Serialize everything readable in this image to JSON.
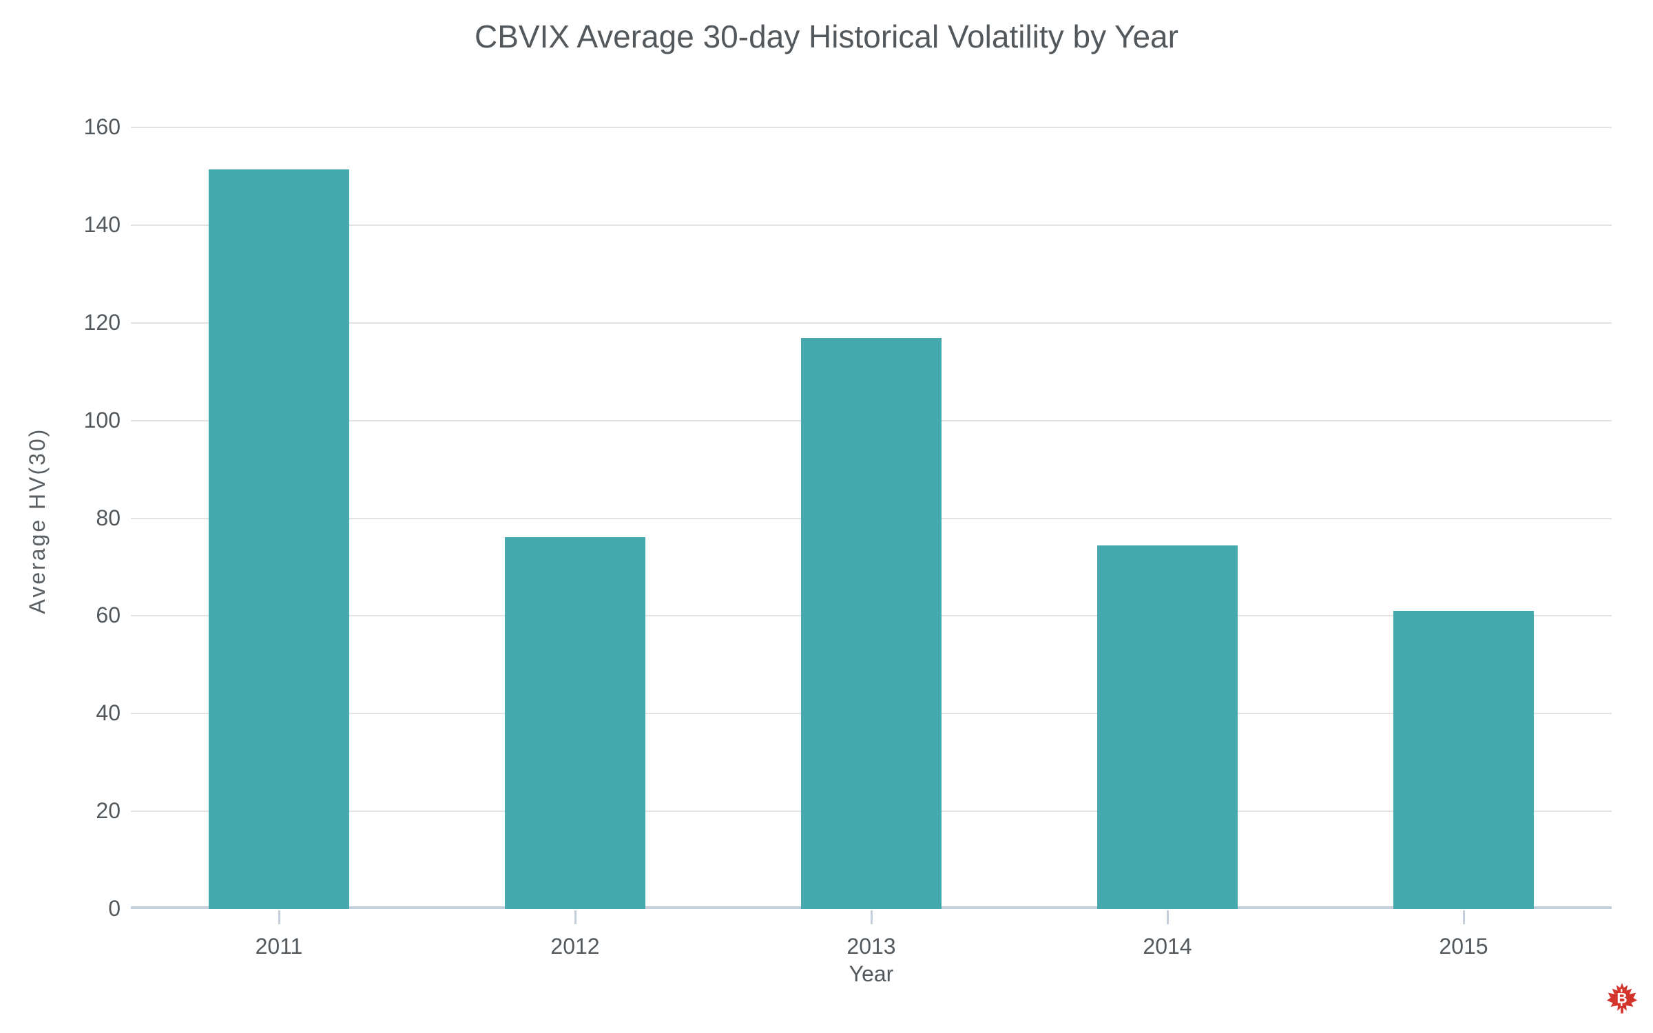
{
  "page": {
    "background": "#ffffff"
  },
  "chart_data": {
    "type": "bar",
    "title": "CBVIX Average 30-day Historical Volatility by Year",
    "xlabel": "Year",
    "ylabel": "Average HV(30)",
    "categories": [
      "2011",
      "2012",
      "2013",
      "2014",
      "2015"
    ],
    "values": [
      151.4,
      76.1,
      116.9,
      74.4,
      61.0
    ],
    "ylim": [
      0,
      160
    ],
    "yticks": [
      0,
      20,
      40,
      60,
      80,
      100,
      120,
      140,
      160
    ],
    "grid": true,
    "legend_position": "none",
    "bar_color": "#46A9AE",
    "grid_color": "#E2E2E2",
    "axis_line_color": "#C4CFDC",
    "text_color": "#53585C"
  },
  "logo": {
    "name": "maple-leaf-bitcoin-logo",
    "leaf_color": "#D3342B",
    "symbol": "B"
  }
}
